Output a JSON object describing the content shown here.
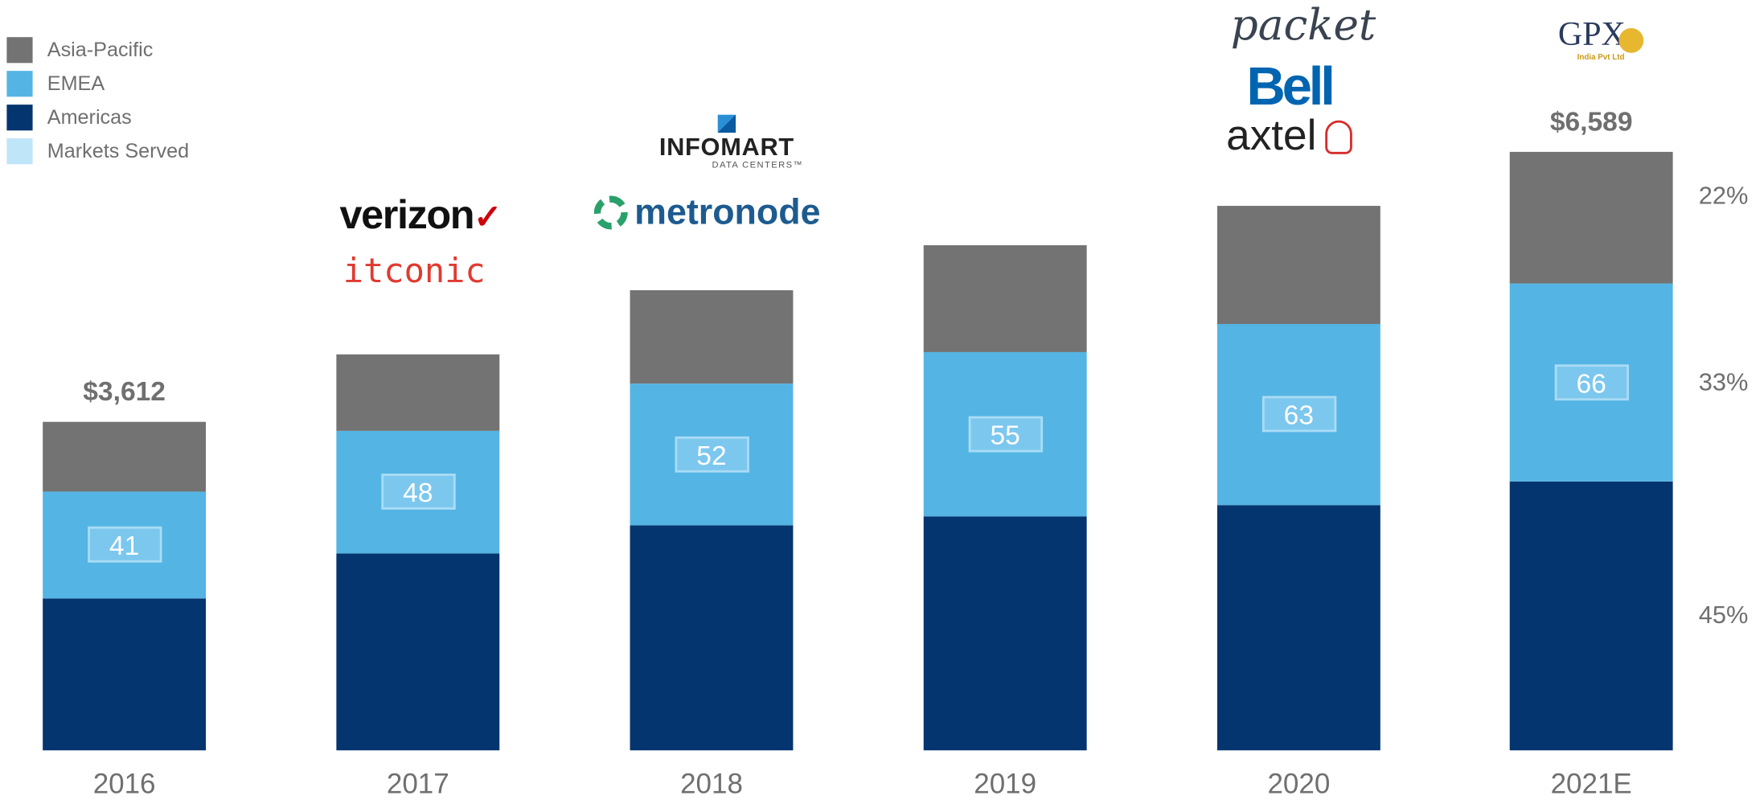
{
  "chart_data": {
    "type": "bar",
    "stacked": true,
    "title": "",
    "xlabel": "",
    "ylabel": "",
    "categories": [
      "2016",
      "2017",
      "2018",
      "2019",
      "2020",
      "2021E"
    ],
    "series": [
      {
        "name": "Americas",
        "color": "#04356f",
        "values": [
          1676,
          2170,
          2480,
          2579,
          2703,
          2965
        ]
      },
      {
        "name": "EMEA",
        "color": "#54b4e4",
        "values": [
          1179,
          1352,
          1562,
          1810,
          1996,
          2174
        ]
      },
      {
        "name": "Asia-Pacific",
        "color": "#737373",
        "values": [
          757,
          843,
          1029,
          1178,
          1302,
          1450
        ]
      }
    ],
    "markets_served": {
      "name": "Markets Served",
      "color": "#bfe5f8",
      "values": [
        41,
        48,
        52,
        55,
        63,
        66
      ]
    },
    "total_labels": [
      {
        "category": "2016",
        "text": "$3,612"
      },
      {
        "category": "2021E",
        "text": "$6,589"
      }
    ],
    "mix_2021E": [
      {
        "series": "Asia-Pacific",
        "text": "22%"
      },
      {
        "series": "EMEA",
        "text": "33%"
      },
      {
        "series": "Americas",
        "text": "45%"
      }
    ],
    "legend": {
      "position": "top-left",
      "order": [
        "Asia-Pacific",
        "EMEA",
        "Americas",
        "Markets Served"
      ]
    },
    "grid": false,
    "ylim": [
      0,
      8900
    ]
  },
  "logos": {
    "2017": [
      "verizon",
      "itconic"
    ],
    "2018": [
      "INFOMART",
      "DATA CENTERS™",
      "metronode"
    ],
    "2020": [
      "packet",
      "Bell",
      "axtel"
    ],
    "2021E": [
      "GPX",
      "India Pvt Ltd"
    ]
  }
}
